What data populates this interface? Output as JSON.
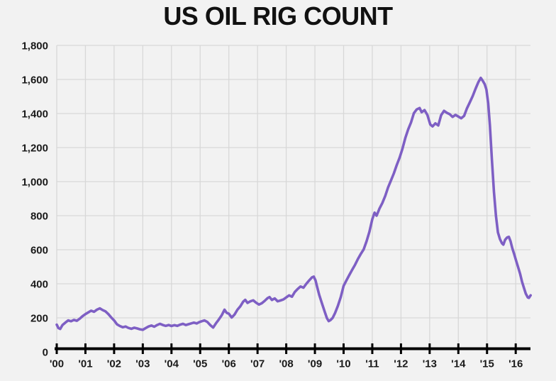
{
  "page": {
    "background": "#f2f2f2"
  },
  "header": {
    "title": "US OIL RIG COUNT"
  },
  "chart_data": {
    "type": "line",
    "title": "US OIL RIG COUNT",
    "xlabel": "",
    "ylabel": "",
    "xlim": [
      2000,
      2016.55
    ],
    "ylim": [
      0,
      1800
    ],
    "grid": true,
    "legend": "none",
    "colors": {
      "line": "#7e5fc4",
      "background": "#f2f2f2",
      "grid": "#d8d8d8",
      "axis": "#000000",
      "tick_label": "#1a1a1a"
    },
    "yticks": [
      {
        "value": 0,
        "label": "0"
      },
      {
        "value": 200,
        "label": "200"
      },
      {
        "value": 400,
        "label": "400"
      },
      {
        "value": 600,
        "label": "600"
      },
      {
        "value": 800,
        "label": "800"
      },
      {
        "value": 1000,
        "label": "1,000"
      },
      {
        "value": 1200,
        "label": "1,200"
      },
      {
        "value": 1400,
        "label": "1,400"
      },
      {
        "value": 1600,
        "label": "1,600"
      },
      {
        "value": 1800,
        "label": "1,800"
      }
    ],
    "xticks": [
      {
        "value": 2000,
        "label": "'00"
      },
      {
        "value": 2001,
        "label": "'01"
      },
      {
        "value": 2002,
        "label": "'02"
      },
      {
        "value": 2003,
        "label": "'03"
      },
      {
        "value": 2004,
        "label": "'04"
      },
      {
        "value": 2005,
        "label": "'05"
      },
      {
        "value": 2006,
        "label": "'06"
      },
      {
        "value": 2007,
        "label": "'07"
      },
      {
        "value": 2008,
        "label": "'08"
      },
      {
        "value": 2009,
        "label": "'09"
      },
      {
        "value": 2010,
        "label": "'10"
      },
      {
        "value": 2011,
        "label": "'11"
      },
      {
        "value": 2012,
        "label": "'12"
      },
      {
        "value": 2013,
        "label": "'13"
      },
      {
        "value": 2014,
        "label": "'14"
      },
      {
        "value": 2015,
        "label": "'15"
      },
      {
        "value": 2016,
        "label": "'16"
      }
    ],
    "series": [
      {
        "name": "US oil rig count",
        "color": "#7e5fc4",
        "points": [
          [
            2000.0,
            160
          ],
          [
            2000.06,
            140
          ],
          [
            2000.12,
            135
          ],
          [
            2000.2,
            158
          ],
          [
            2000.3,
            172
          ],
          [
            2000.4,
            185
          ],
          [
            2000.5,
            180
          ],
          [
            2000.6,
            188
          ],
          [
            2000.7,
            183
          ],
          [
            2000.8,
            195
          ],
          [
            2000.9,
            210
          ],
          [
            2001.0,
            222
          ],
          [
            2001.1,
            232
          ],
          [
            2001.2,
            242
          ],
          [
            2001.3,
            236
          ],
          [
            2001.4,
            248
          ],
          [
            2001.5,
            256
          ],
          [
            2001.6,
            246
          ],
          [
            2001.7,
            238
          ],
          [
            2001.8,
            222
          ],
          [
            2001.9,
            202
          ],
          [
            2002.0,
            185
          ],
          [
            2002.1,
            162
          ],
          [
            2002.2,
            152
          ],
          [
            2002.3,
            145
          ],
          [
            2002.4,
            149
          ],
          [
            2002.5,
            141
          ],
          [
            2002.6,
            136
          ],
          [
            2002.7,
            142
          ],
          [
            2002.8,
            138
          ],
          [
            2002.9,
            133
          ],
          [
            2003.0,
            130
          ],
          [
            2003.1,
            140
          ],
          [
            2003.2,
            149
          ],
          [
            2003.3,
            155
          ],
          [
            2003.4,
            148
          ],
          [
            2003.5,
            158
          ],
          [
            2003.6,
            165
          ],
          [
            2003.7,
            158
          ],
          [
            2003.8,
            153
          ],
          [
            2003.9,
            158
          ],
          [
            2004.0,
            152
          ],
          [
            2004.1,
            157
          ],
          [
            2004.2,
            153
          ],
          [
            2004.3,
            160
          ],
          [
            2004.4,
            165
          ],
          [
            2004.5,
            158
          ],
          [
            2004.6,
            163
          ],
          [
            2004.7,
            168
          ],
          [
            2004.78,
            172
          ],
          [
            2004.88,
            167
          ],
          [
            2004.96,
            174
          ],
          [
            2005.05,
            180
          ],
          [
            2005.15,
            185
          ],
          [
            2005.25,
            176
          ],
          [
            2005.35,
            158
          ],
          [
            2005.45,
            143
          ],
          [
            2005.55,
            168
          ],
          [
            2005.65,
            190
          ],
          [
            2005.75,
            215
          ],
          [
            2005.85,
            248
          ],
          [
            2005.92,
            230
          ],
          [
            2006.0,
            224
          ],
          [
            2006.1,
            202
          ],
          [
            2006.2,
            220
          ],
          [
            2006.3,
            248
          ],
          [
            2006.4,
            268
          ],
          [
            2006.5,
            295
          ],
          [
            2006.57,
            306
          ],
          [
            2006.65,
            288
          ],
          [
            2006.75,
            297
          ],
          [
            2006.85,
            303
          ],
          [
            2006.95,
            289
          ],
          [
            2007.05,
            278
          ],
          [
            2007.15,
            286
          ],
          [
            2007.25,
            300
          ],
          [
            2007.35,
            316
          ],
          [
            2007.42,
            322
          ],
          [
            2007.5,
            305
          ],
          [
            2007.6,
            314
          ],
          [
            2007.7,
            297
          ],
          [
            2007.8,
            302
          ],
          [
            2007.9,
            308
          ],
          [
            2008.0,
            320
          ],
          [
            2008.1,
            332
          ],
          [
            2008.2,
            324
          ],
          [
            2008.3,
            352
          ],
          [
            2008.4,
            370
          ],
          [
            2008.5,
            384
          ],
          [
            2008.6,
            377
          ],
          [
            2008.7,
            400
          ],
          [
            2008.8,
            420
          ],
          [
            2008.9,
            438
          ],
          [
            2008.96,
            442
          ],
          [
            2009.02,
            420
          ],
          [
            2009.08,
            380
          ],
          [
            2009.15,
            335
          ],
          [
            2009.25,
            282
          ],
          [
            2009.35,
            232
          ],
          [
            2009.42,
            198
          ],
          [
            2009.48,
            181
          ],
          [
            2009.55,
            188
          ],
          [
            2009.62,
            200
          ],
          [
            2009.7,
            228
          ],
          [
            2009.8,
            270
          ],
          [
            2009.9,
            322
          ],
          [
            2010.0,
            388
          ],
          [
            2010.1,
            420
          ],
          [
            2010.2,
            452
          ],
          [
            2010.3,
            482
          ],
          [
            2010.4,
            512
          ],
          [
            2010.5,
            546
          ],
          [
            2010.6,
            576
          ],
          [
            2010.7,
            602
          ],
          [
            2010.8,
            650
          ],
          [
            2010.9,
            706
          ],
          [
            2011.0,
            780
          ],
          [
            2011.08,
            818
          ],
          [
            2011.15,
            800
          ],
          [
            2011.25,
            842
          ],
          [
            2011.35,
            874
          ],
          [
            2011.45,
            916
          ],
          [
            2011.55,
            966
          ],
          [
            2011.65,
            1006
          ],
          [
            2011.75,
            1048
          ],
          [
            2011.85,
            1096
          ],
          [
            2011.95,
            1140
          ],
          [
            2012.05,
            1192
          ],
          [
            2012.15,
            1256
          ],
          [
            2012.25,
            1306
          ],
          [
            2012.35,
            1348
          ],
          [
            2012.45,
            1402
          ],
          [
            2012.55,
            1424
          ],
          [
            2012.65,
            1432
          ],
          [
            2012.72,
            1408
          ],
          [
            2012.82,
            1420
          ],
          [
            2012.92,
            1392
          ],
          [
            2013.02,
            1336
          ],
          [
            2013.1,
            1324
          ],
          [
            2013.2,
            1342
          ],
          [
            2013.3,
            1330
          ],
          [
            2013.4,
            1390
          ],
          [
            2013.5,
            1416
          ],
          [
            2013.6,
            1404
          ],
          [
            2013.7,
            1396
          ],
          [
            2013.8,
            1380
          ],
          [
            2013.9,
            1392
          ],
          [
            2014.0,
            1382
          ],
          [
            2014.1,
            1372
          ],
          [
            2014.2,
            1386
          ],
          [
            2014.3,
            1430
          ],
          [
            2014.4,
            1466
          ],
          [
            2014.5,
            1502
          ],
          [
            2014.6,
            1546
          ],
          [
            2014.7,
            1585
          ],
          [
            2014.78,
            1609
          ],
          [
            2014.85,
            1592
          ],
          [
            2014.92,
            1572
          ],
          [
            2014.98,
            1540
          ],
          [
            2015.04,
            1460
          ],
          [
            2015.1,
            1330
          ],
          [
            2015.17,
            1130
          ],
          [
            2015.24,
            940
          ],
          [
            2015.31,
            800
          ],
          [
            2015.38,
            702
          ],
          [
            2015.45,
            662
          ],
          [
            2015.52,
            638
          ],
          [
            2015.57,
            630
          ],
          [
            2015.63,
            658
          ],
          [
            2015.7,
            672
          ],
          [
            2015.76,
            676
          ],
          [
            2015.82,
            650
          ],
          [
            2015.88,
            610
          ],
          [
            2015.95,
            572
          ],
          [
            2016.02,
            532
          ],
          [
            2016.08,
            500
          ],
          [
            2016.15,
            460
          ],
          [
            2016.22,
            412
          ],
          [
            2016.28,
            380
          ],
          [
            2016.35,
            342
          ],
          [
            2016.42,
            320
          ],
          [
            2016.46,
            317
          ],
          [
            2016.52,
            332
          ]
        ]
      }
    ]
  }
}
